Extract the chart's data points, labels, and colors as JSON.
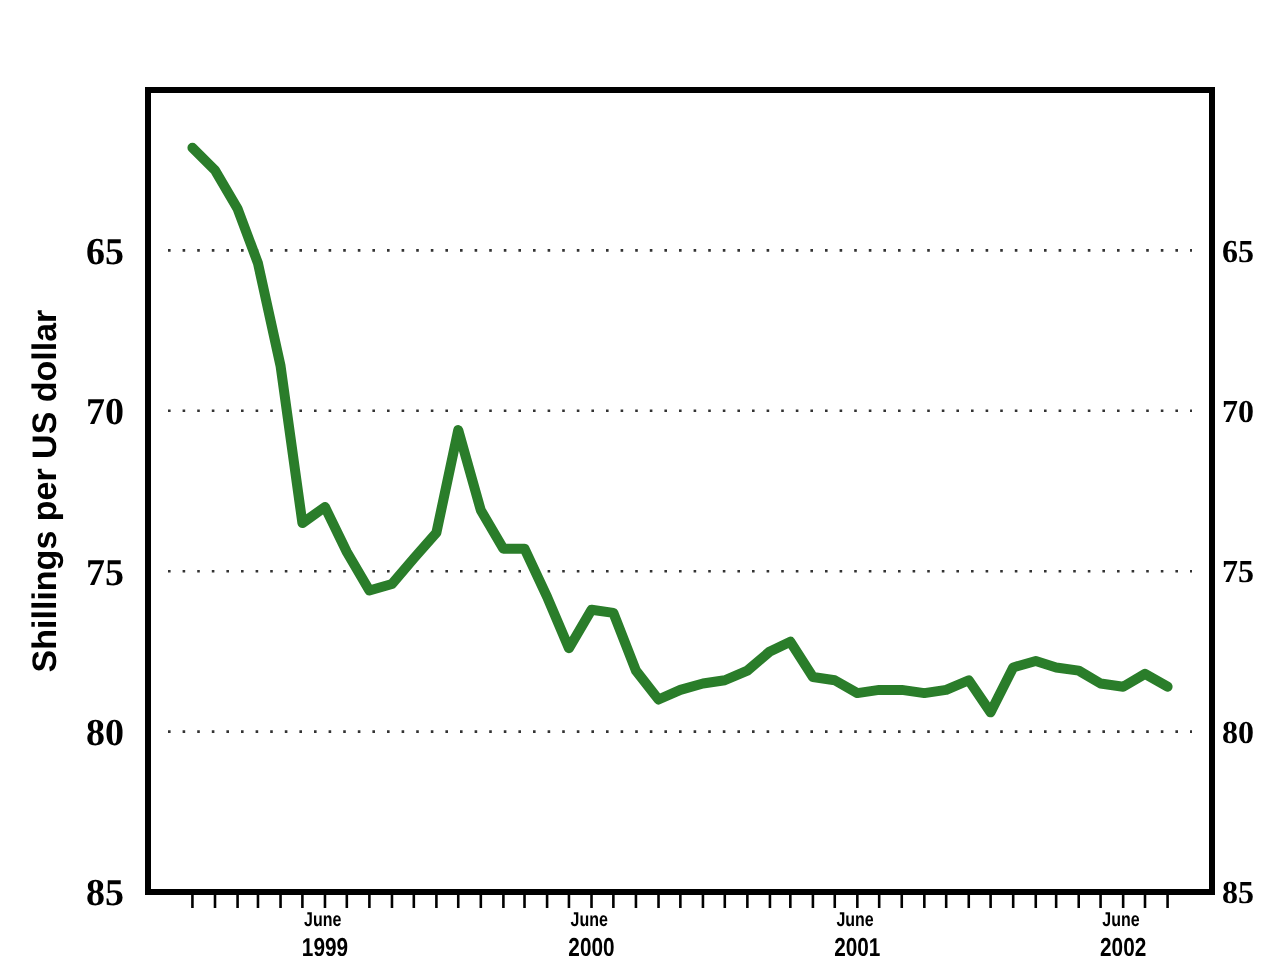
{
  "chart_data": {
    "type": "line",
    "ylabel": "Shillings per US dollar",
    "x": [
      "1998-12",
      "1999-01",
      "1999-02",
      "1999-03",
      "1999-04",
      "1999-05",
      "1999-06",
      "1999-07",
      "1999-08",
      "1999-09",
      "1999-10",
      "1999-11",
      "1999-12",
      "2000-01",
      "2000-02",
      "2000-03",
      "2000-04",
      "2000-05",
      "2000-06",
      "2000-07",
      "2000-08",
      "2000-09",
      "2000-10",
      "2000-11",
      "2000-12",
      "2001-01",
      "2001-02",
      "2001-03",
      "2001-04",
      "2001-05",
      "2001-06",
      "2001-07",
      "2001-08",
      "2001-09",
      "2001-10",
      "2001-11",
      "2001-12",
      "2002-01",
      "2002-02",
      "2002-03",
      "2002-04",
      "2002-05",
      "2002-06",
      "2002-07",
      "2002-08"
    ],
    "series": [
      {
        "color": "#2a7d2a",
        "values": [
          61.8,
          62.5,
          63.7,
          65.4,
          68.6,
          73.5,
          73.0,
          74.4,
          75.6,
          75.4,
          74.6,
          73.8,
          70.6,
          73.1,
          74.3,
          74.3,
          75.8,
          77.4,
          76.2,
          76.3,
          78.1,
          79.0,
          78.7,
          78.5,
          78.4,
          78.1,
          77.5,
          77.2,
          78.3,
          78.4,
          78.8,
          78.7,
          78.7,
          78.8,
          78.7,
          78.4,
          79.4,
          78.0,
          77.8,
          78.0,
          78.1,
          78.5,
          78.6,
          78.2,
          78.6
        ]
      }
    ],
    "xlim": [
      "1998-10",
      "2002-10"
    ],
    "xticks": [
      {
        "value": "1998-12",
        "label": null
      },
      {
        "value": "1999-01",
        "label": null
      },
      {
        "value": "1999-02",
        "label": null
      },
      {
        "value": "1999-03",
        "label": null
      },
      {
        "value": "1999-04",
        "label": null
      },
      {
        "value": "1999-05",
        "label": null
      },
      {
        "value": "1999-06",
        "label": "June 1999"
      },
      {
        "value": "1999-07",
        "label": null
      },
      {
        "value": "1999-08",
        "label": null
      },
      {
        "value": "1999-09",
        "label": null
      },
      {
        "value": "1999-10",
        "label": null
      },
      {
        "value": "1999-11",
        "label": null
      },
      {
        "value": "1999-12",
        "label": null
      },
      {
        "value": "2000-01",
        "label": null
      },
      {
        "value": "2000-02",
        "label": null
      },
      {
        "value": "2000-03",
        "label": null
      },
      {
        "value": "2000-04",
        "label": null
      },
      {
        "value": "2000-05",
        "label": null
      },
      {
        "value": "2000-06",
        "label": "June 2000"
      },
      {
        "value": "2000-07",
        "label": null
      },
      {
        "value": "2000-08",
        "label": null
      },
      {
        "value": "2000-09",
        "label": null
      },
      {
        "value": "2000-10",
        "label": null
      },
      {
        "value": "2000-11",
        "label": null
      },
      {
        "value": "2000-12",
        "label": null
      },
      {
        "value": "2001-01",
        "label": null
      },
      {
        "value": "2001-02",
        "label": null
      },
      {
        "value": "2001-03",
        "label": null
      },
      {
        "value": "2001-04",
        "label": null
      },
      {
        "value": "2001-05",
        "label": null
      },
      {
        "value": "2001-06",
        "label": "June 2001"
      },
      {
        "value": "2001-07",
        "label": null
      },
      {
        "value": "2001-08",
        "label": null
      },
      {
        "value": "2001-09",
        "label": null
      },
      {
        "value": "2001-10",
        "label": null
      },
      {
        "value": "2001-11",
        "label": null
      },
      {
        "value": "2001-12",
        "label": null
      },
      {
        "value": "2002-01",
        "label": null
      },
      {
        "value": "2002-02",
        "label": null
      },
      {
        "value": "2002-03",
        "label": null
      },
      {
        "value": "2002-04",
        "label": null
      },
      {
        "value": "2002-05",
        "label": null
      },
      {
        "value": "2002-06",
        "label": "June 2002"
      },
      {
        "value": "2002-07",
        "label": null
      },
      {
        "value": "2002-08",
        "label": null
      }
    ],
    "ylim": [
      85,
      60
    ],
    "yticks": [
      65,
      70,
      75,
      80,
      85
    ],
    "y2lim": [
      85,
      60
    ],
    "y2ticks": [
      65,
      70,
      75,
      80,
      85
    ],
    "grid": "y",
    "marker": "none",
    "line_style": "solid"
  }
}
